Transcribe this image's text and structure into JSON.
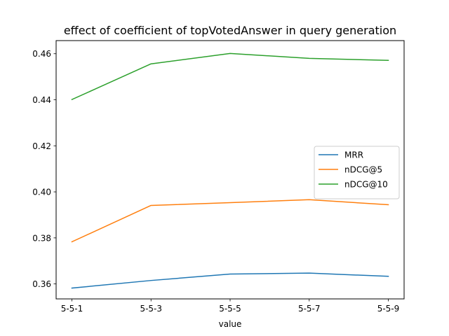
{
  "chart_data": {
    "type": "line",
    "title": "effect of coefficient of topVotedAnswer in query generation",
    "xlabel": "value",
    "ylabel": "",
    "categories": [
      "5-5-1",
      "5-5-3",
      "5-5-5",
      "5-5-7",
      "5-5-9"
    ],
    "ylim": [
      0.3535,
      0.4657
    ],
    "yticks": [
      0.36,
      0.38,
      0.4,
      0.42,
      0.44,
      0.46
    ],
    "ytick_labels": [
      "0.36",
      "0.38",
      "0.40",
      "0.42",
      "0.44",
      "0.46"
    ],
    "grid": false,
    "legend_position": "center-right",
    "series": [
      {
        "name": "MRR",
        "color": "#1f77b4",
        "values": [
          0.3582,
          0.3615,
          0.3643,
          0.3647,
          0.3633
        ]
      },
      {
        "name": "nDCG@5",
        "color": "#ff7f0e",
        "values": [
          0.3783,
          0.3941,
          0.3953,
          0.3966,
          0.3944
        ]
      },
      {
        "name": "nDCG@10",
        "color": "#2ca02c",
        "values": [
          0.4401,
          0.4556,
          0.4601,
          0.458,
          0.4571
        ]
      }
    ]
  }
}
